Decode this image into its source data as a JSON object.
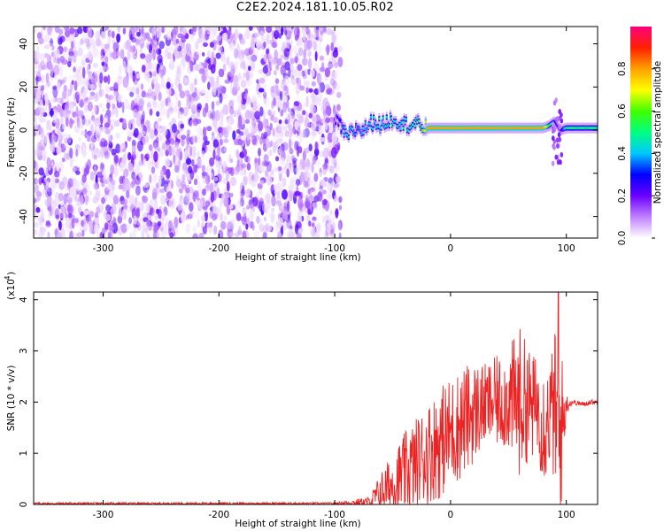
{
  "title": "C2E2.2024.181.10.05.R02",
  "chart_data": [
    {
      "type": "heatmap",
      "xlabel": "Height of straight line (km)",
      "ylabel": "Frequency (Hz)",
      "xlim": [
        -360,
        127
      ],
      "ylim": [
        -50,
        48
      ],
      "xticks": [
        -300,
        -200,
        -100,
        0,
        100
      ],
      "yticks": [
        -40,
        -20,
        0,
        20,
        40
      ],
      "colorbar": {
        "label": "Normalized spectral amplitude",
        "range": [
          0.0,
          1.0
        ],
        "ticks": [
          0.0,
          0.2,
          0.4,
          0.6,
          0.8
        ],
        "colors": [
          "#ffffff",
          "#c080ff",
          "#6a00ff",
          "#0000ff",
          "#00c8ff",
          "#00ff80",
          "#40ff00",
          "#ffff00",
          "#ffa000",
          "#ff2000",
          "#ff0080"
        ]
      },
      "noise_region_x": [
        -360,
        -95
      ],
      "noise_amplitude": 0.15,
      "signal_trace": {
        "x": [
          -100,
          -95,
          -90,
          -85,
          -80,
          -75,
          -70,
          -65,
          -60,
          -55,
          -50,
          -45,
          -40,
          -35,
          -30,
          -25,
          -20,
          -10,
          0,
          20,
          40,
          60,
          80,
          85,
          90,
          95,
          100,
          127
        ],
        "frequency": [
          5,
          2,
          -3,
          -1,
          1,
          0,
          3,
          4,
          2,
          4,
          5,
          4,
          3,
          2,
          3,
          2,
          1,
          1,
          1,
          1,
          1,
          1,
          1,
          2,
          4,
          0,
          1,
          1
        ],
        "amplitude": [
          0.2,
          0.3,
          0.45,
          0.4,
          0.35,
          0.4,
          0.4,
          0.45,
          0.45,
          0.45,
          0.45,
          0.45,
          0.45,
          0.5,
          0.5,
          0.55,
          0.8,
          0.8,
          0.8,
          0.8,
          0.8,
          0.8,
          0.8,
          0.6,
          0.3,
          0.2,
          0.5,
          0.5
        ]
      }
    },
    {
      "type": "line",
      "xlabel": "Height of straight line (km)",
      "ylabel": "SNR (10 * v/v)",
      "scale_note": "(x10",
      "scale_exp": "4",
      "scale_close": ")",
      "xlim": [
        -360,
        127
      ],
      "ylim": [
        0,
        4.15
      ],
      "xticks": [
        -300,
        -200,
        -100,
        0,
        100
      ],
      "yticks": [
        0,
        1,
        2,
        3,
        4
      ],
      "color": "#ee2222",
      "envelope": {
        "x": [
          -360,
          -100,
          -70,
          -60,
          -50,
          -40,
          -30,
          -20,
          -10,
          0,
          10,
          20,
          30,
          40,
          50,
          55,
          60,
          65,
          70,
          75,
          80,
          85,
          90,
          93,
          96,
          100,
          105,
          110,
          115,
          120,
          127
        ],
        "base": [
          0.02,
          0.02,
          0.05,
          0.25,
          0.4,
          0.6,
          0.8,
          1.0,
          1.2,
          1.4,
          1.6,
          1.8,
          1.95,
          2.0,
          2.05,
          2.0,
          2.0,
          2.0,
          1.9,
          1.95,
          1.6,
          1.7,
          1.9,
          1.2,
          1.5,
          1.95,
          2.0,
          1.98,
          1.95,
          2.0,
          2.0
        ],
        "spread": [
          0.02,
          0.02,
          0.1,
          0.4,
          0.6,
          0.8,
          0.9,
          1.0,
          1.1,
          1.1,
          1.1,
          1.0,
          0.8,
          0.9,
          1.0,
          1.3,
          1.5,
          1.2,
          1.1,
          0.9,
          1.3,
          1.0,
          1.5,
          2.2,
          1.5,
          0.2,
          0.05,
          0.05,
          0.05,
          0.05,
          0.05
        ]
      },
      "peak": {
        "x": 93,
        "y": 4.15
      }
    }
  ]
}
